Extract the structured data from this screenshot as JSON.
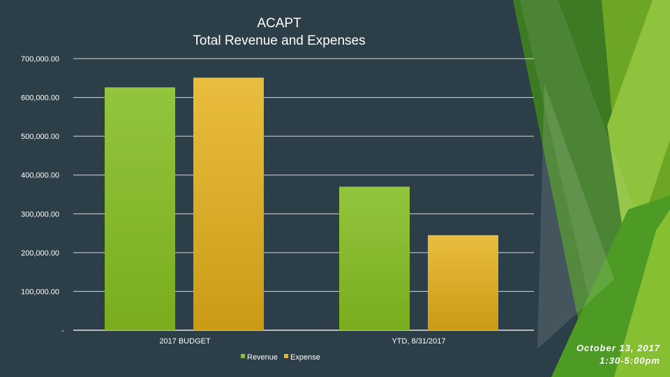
{
  "slide": {
    "date_line": "October 13, 2017",
    "time_line": "1:30-5:00pm"
  },
  "colors": {
    "background": "#2c3e47",
    "revenue": "#8cbf35",
    "expense": "#e2b534",
    "gridline": "#d9d9d9",
    "text": "#ffffff"
  },
  "chart_data": {
    "type": "bar",
    "title": "ACAPT",
    "subtitle": "Total Revenue and Expenses",
    "categories": [
      "2017 BUDGET",
      "YTD, 8/31/2017"
    ],
    "series": [
      {
        "name": "Revenue",
        "color": "#8cbf35",
        "values": [
          626000,
          370000
        ]
      },
      {
        "name": "Expense",
        "color": "#e2b534",
        "values": [
          651000,
          245000
        ]
      }
    ],
    "ylim": [
      0,
      700000
    ],
    "yticks": [
      0,
      100000,
      200000,
      300000,
      400000,
      500000,
      600000,
      700000
    ],
    "ytick_labels": [
      "-",
      "100,000.00",
      "200,000.00",
      "300,000.00",
      "400,000.00",
      "500,000.00",
      "600,000.00",
      "700,000.00"
    ],
    "grid": true,
    "legend": "bottom"
  }
}
